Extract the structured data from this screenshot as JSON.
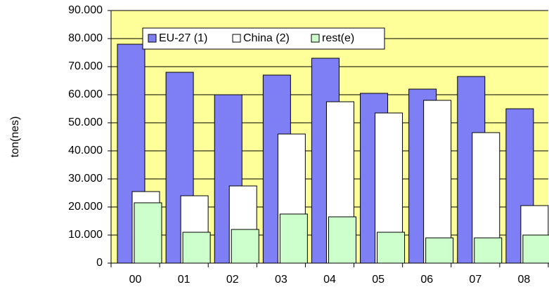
{
  "chart_data": {
    "type": "bar",
    "y_label": "ton(nes)",
    "categories": [
      "00",
      "01",
      "02",
      "03",
      "04",
      "05",
      "06",
      "07",
      "08"
    ],
    "series": [
      {
        "name": "EU-27 (1)",
        "color": "#7f7ff5",
        "values": [
          78000,
          68000,
          60000,
          67000,
          73000,
          60500,
          62000,
          66500,
          55000
        ]
      },
      {
        "name": "China (2)",
        "color": "#ffffff",
        "values": [
          25500,
          24000,
          27500,
          46000,
          57500,
          53500,
          58000,
          46500,
          20500
        ]
      },
      {
        "name": "rest(e)",
        "color": "#ccffcc",
        "values": [
          21500,
          11000,
          12000,
          17500,
          16500,
          11000,
          9000,
          9000,
          10000
        ]
      }
    ],
    "ylim": [
      0,
      90000
    ],
    "yticks": [
      0,
      {
        "value": 10000,
        "label": "10.000"
      },
      {
        "value": 20000,
        "label": "20.000"
      },
      {
        "value": 30000,
        "label": "30.000"
      },
      {
        "value": 40000,
        "label": "40.000"
      },
      {
        "value": 50000,
        "label": "50.000"
      },
      {
        "value": 60000,
        "label": "60.000"
      },
      {
        "value": 70000,
        "label": "70.000"
      },
      {
        "value": 80000,
        "label": "80.000"
      },
      {
        "value": 90000,
        "label": "90.000"
      }
    ],
    "grid": true,
    "background": "#ffff99",
    "legend": "top"
  }
}
